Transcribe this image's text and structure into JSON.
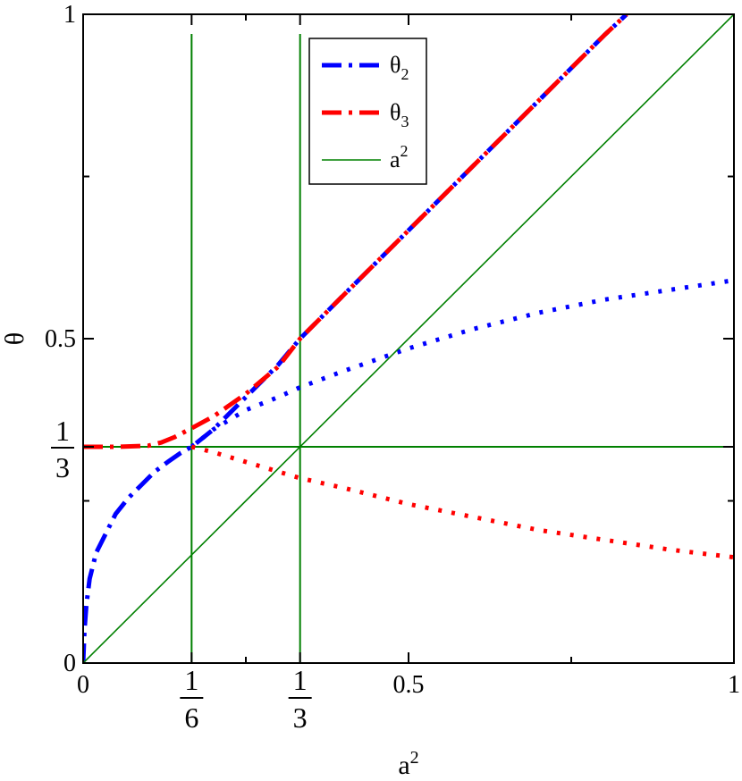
{
  "chart_data": {
    "type": "line",
    "title": "",
    "xlabel": "a",
    "xlabel_sup": "2",
    "ylabel": "θ",
    "xlim": [
      0,
      1
    ],
    "ylim": [
      0,
      1
    ],
    "grid": false,
    "legend_position": "top-center",
    "x_ticks": [
      {
        "value": 0,
        "label": "0"
      },
      {
        "value": 0.16667,
        "num": "1",
        "den": "6"
      },
      {
        "value": 0.33333,
        "num": "1",
        "den": "3"
      },
      {
        "value": 0.5,
        "label": "0.5"
      },
      {
        "value": 1,
        "label": "1"
      }
    ],
    "y_ticks": [
      {
        "value": 0,
        "label": "0"
      },
      {
        "value": 0.33333,
        "num": "1",
        "den": "3"
      },
      {
        "value": 0.5,
        "label": "0.5"
      },
      {
        "value": 1,
        "label": "1"
      }
    ],
    "x_minor_ticks": [
      0.25,
      0.75
    ],
    "y_minor_ticks": [
      0.25,
      0.75
    ],
    "series": [
      {
        "name": "θ",
        "name_sub": "2",
        "color": "#0000ff",
        "style": "dash-dot",
        "x": [
          0,
          0.002,
          0.005,
          0.01,
          0.02,
          0.035,
          0.05,
          0.07,
          0.09,
          0.11,
          0.13,
          0.15,
          0.16667,
          0.2,
          0.25,
          0.3,
          0.33333,
          0.4,
          0.5,
          0.6,
          0.7,
          0.8,
          0.835
        ],
        "y": [
          0,
          0.05,
          0.09,
          0.13,
          0.17,
          0.2,
          0.23,
          0.255,
          0.275,
          0.295,
          0.31,
          0.324,
          0.33333,
          0.36,
          0.41,
          0.46,
          0.5,
          0.567,
          0.667,
          0.767,
          0.867,
          0.967,
          1.0
        ]
      },
      {
        "name": "",
        "color": "#0000ff",
        "style": "dotted",
        "x": [
          0.16667,
          0.2,
          0.25,
          0.3,
          0.33333,
          0.4,
          0.5,
          0.6,
          0.7,
          0.8,
          0.9,
          1.0
        ],
        "y": [
          0.33333,
          0.36,
          0.39,
          0.41,
          0.425,
          0.45,
          0.485,
          0.515,
          0.54,
          0.56,
          0.575,
          0.59
        ]
      },
      {
        "name": "θ",
        "name_sub": "3",
        "color": "#ff0000",
        "style": "dash-dot",
        "x": [
          0,
          0.05,
          0.1,
          0.12,
          0.14,
          0.16667,
          0.2,
          0.25,
          0.3,
          0.33333,
          0.4,
          0.5,
          0.6,
          0.7,
          0.8,
          0.835
        ],
        "y": [
          0.33333,
          0.33333,
          0.335,
          0.34,
          0.348,
          0.362,
          0.38,
          0.415,
          0.457,
          0.5,
          0.567,
          0.667,
          0.767,
          0.867,
          0.967,
          1.0
        ]
      },
      {
        "name": "",
        "color": "#ff0000",
        "style": "dotted",
        "x": [
          0.16667,
          0.2,
          0.25,
          0.3,
          0.33333,
          0.4,
          0.5,
          0.6,
          0.7,
          0.8,
          0.9,
          1.0
        ],
        "y": [
          0.33333,
          0.325,
          0.31,
          0.295,
          0.285,
          0.27,
          0.245,
          0.225,
          0.205,
          0.19,
          0.175,
          0.163
        ]
      },
      {
        "name": "a",
        "name_sup": "2",
        "color": "#008000",
        "style": "solid",
        "x": [
          0,
          1
        ],
        "y": [
          0,
          1
        ]
      }
    ],
    "reference_lines": [
      {
        "orientation": "vertical",
        "value": 0.16667,
        "color": "#008000"
      },
      {
        "orientation": "vertical",
        "value": 0.33333,
        "color": "#008000"
      },
      {
        "orientation": "horizontal",
        "value": 0.33333,
        "color": "#008000"
      }
    ]
  }
}
